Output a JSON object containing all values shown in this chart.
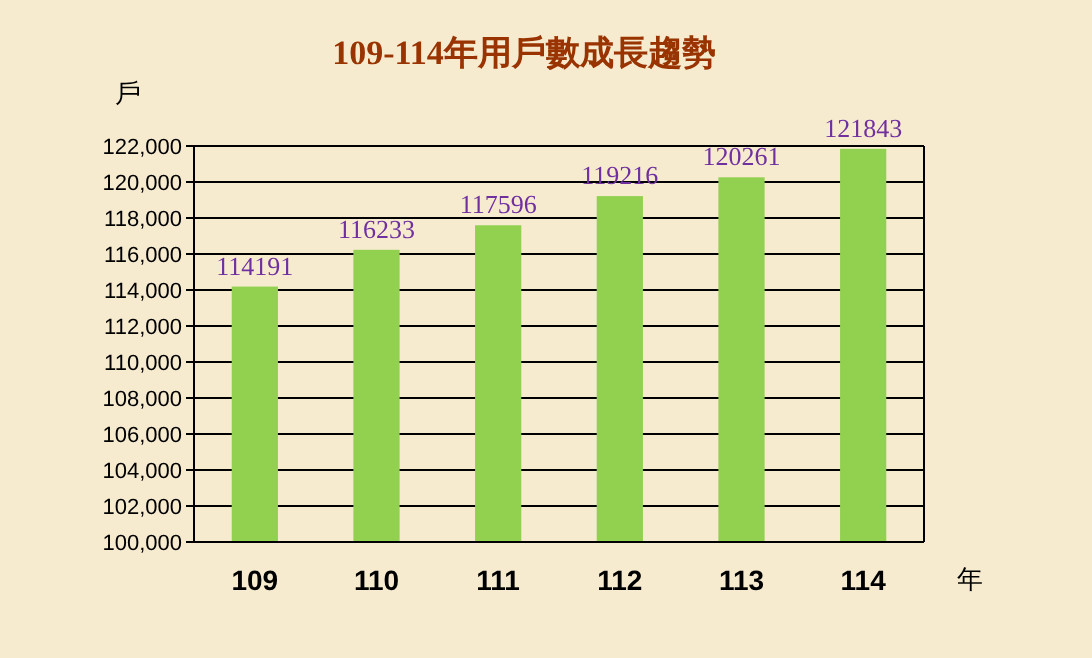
{
  "chart_data": {
    "type": "bar",
    "title": "109-114年用戶數成長趨勢",
    "ylabel": "戶",
    "xlabel": "年",
    "categories": [
      "109",
      "110",
      "111",
      "112",
      "113",
      "114"
    ],
    "values": [
      114191,
      116233,
      117596,
      119216,
      120261,
      121843
    ],
    "color": "#92d050",
    "data_labels": true,
    "grid": "y",
    "ylim": [
      100000,
      122000
    ],
    "yticks": [
      {
        "value": 100000,
        "label": "100,000"
      },
      {
        "value": 102000,
        "label": "102,000"
      },
      {
        "value": 104000,
        "label": "104,000"
      },
      {
        "value": 106000,
        "label": "106,000"
      },
      {
        "value": 108000,
        "label": "108,000"
      },
      {
        "value": 110000,
        "label": "110,000"
      },
      {
        "value": 112000,
        "label": "112,000"
      },
      {
        "value": 114000,
        "label": "114,000"
      },
      {
        "value": 116000,
        "label": "116,000"
      },
      {
        "value": 118000,
        "label": "118,000"
      },
      {
        "value": 120000,
        "label": "120,000"
      },
      {
        "value": 122000,
        "label": "122,000"
      }
    ]
  }
}
